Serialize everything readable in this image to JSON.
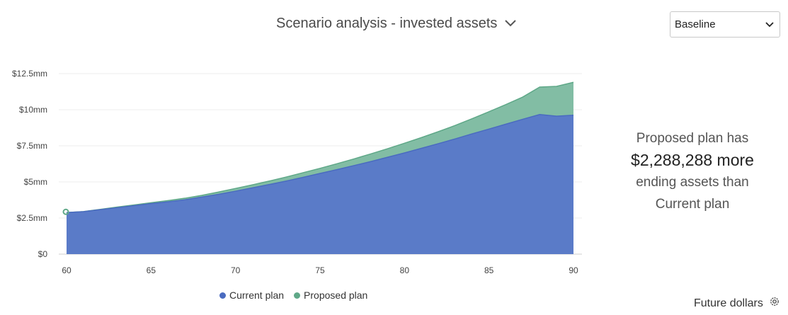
{
  "header": {
    "title": "Scenario analysis - invested assets"
  },
  "scenario_select": {
    "value": "Baseline"
  },
  "summary": {
    "line1": "Proposed plan has",
    "amount": "$2,288,288 more",
    "line3": "ending assets than",
    "line4": "Current plan"
  },
  "footer": {
    "label": "Future dollars"
  },
  "colors": {
    "current": "#5a7bc8",
    "proposed": "#82bda4",
    "current_line": "#4a6bc0",
    "proposed_line": "#5fa888",
    "marker": "#5fa888"
  },
  "chart_data": {
    "type": "area",
    "x": [
      60,
      61,
      62,
      63,
      64,
      65,
      66,
      67,
      68,
      69,
      70,
      71,
      72,
      73,
      74,
      75,
      76,
      77,
      78,
      79,
      80,
      81,
      82,
      83,
      84,
      85,
      86,
      87,
      88,
      89,
      90
    ],
    "series": [
      {
        "name": "Current plan",
        "values": [
          2.88,
          2.94,
          3.08,
          3.22,
          3.36,
          3.5,
          3.62,
          3.76,
          3.95,
          4.14,
          4.36,
          4.59,
          4.82,
          5.06,
          5.32,
          5.59,
          5.85,
          6.13,
          6.41,
          6.71,
          7.01,
          7.33,
          7.65,
          7.98,
          8.33,
          8.66,
          9.0,
          9.34,
          9.67,
          9.55,
          9.62
        ]
      },
      {
        "name": "Proposed plan",
        "values": [
          2.88,
          2.95,
          3.1,
          3.26,
          3.41,
          3.56,
          3.71,
          3.87,
          4.07,
          4.3,
          4.55,
          4.8,
          5.06,
          5.34,
          5.64,
          5.94,
          6.26,
          6.59,
          6.94,
          7.3,
          7.68,
          8.07,
          8.48,
          8.91,
          9.38,
          9.86,
          10.36,
          10.88,
          11.57,
          11.62,
          11.9
        ]
      }
    ],
    "y_ticks": [
      "$0",
      "$2.5mm",
      "$5mm",
      "$7.5mm",
      "$10mm",
      "$12.5mm"
    ],
    "y_tick_values": [
      0,
      2.5,
      5,
      7.5,
      10,
      12.5
    ],
    "x_ticks": [
      60,
      65,
      70,
      75,
      80,
      85,
      90
    ],
    "xlim": [
      60,
      90
    ],
    "ylim": [
      0,
      12.5
    ],
    "grid": true,
    "legend": "bottom"
  }
}
